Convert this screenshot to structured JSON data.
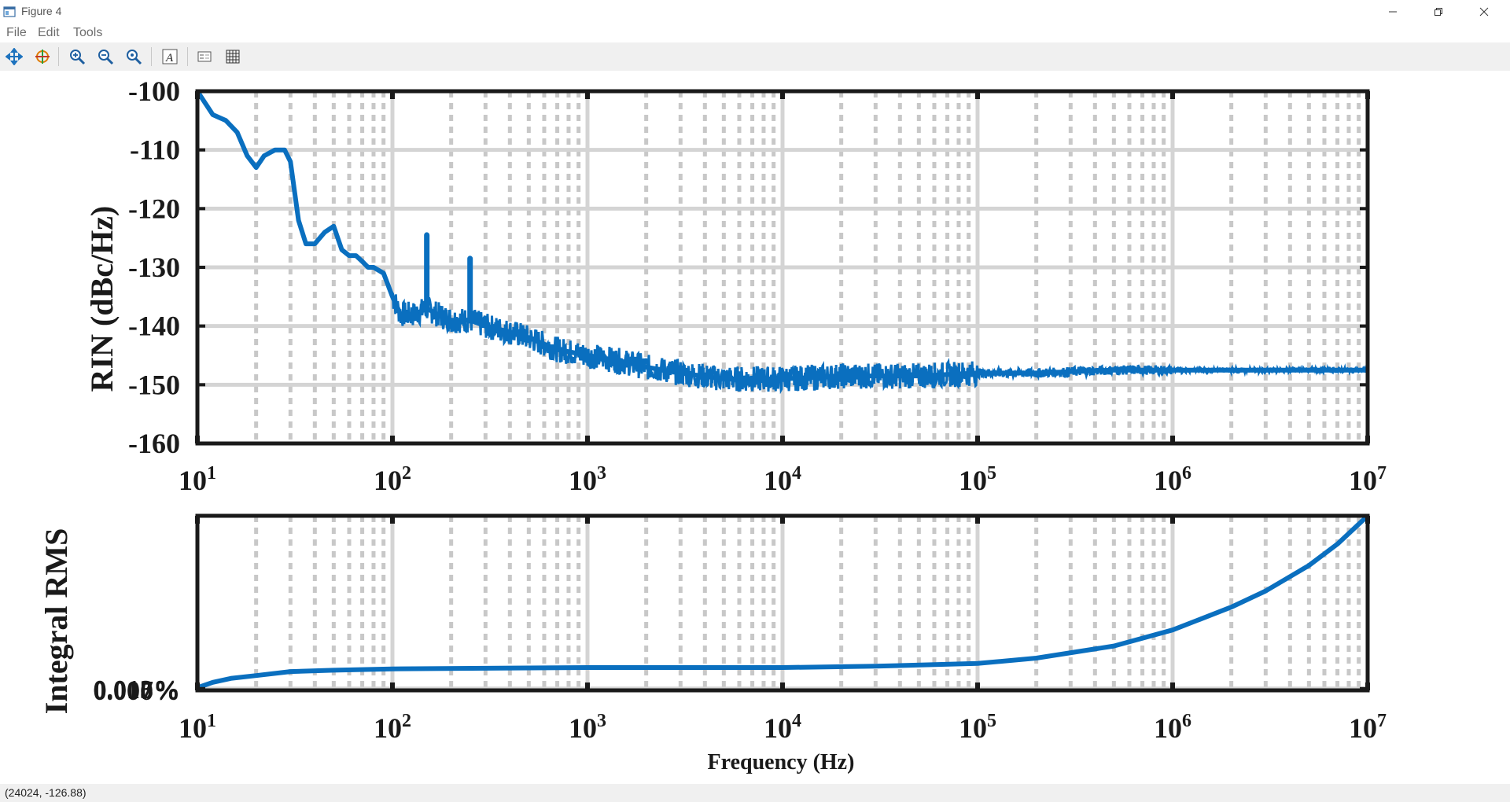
{
  "window": {
    "title": "Figure 4",
    "controls": [
      "minimize",
      "restore",
      "close"
    ]
  },
  "menu": {
    "items": [
      "File",
      "Edit",
      "Tools"
    ]
  },
  "toolbar": {
    "buttons": [
      {
        "icon": "pan-icon"
      },
      {
        "icon": "rotate-3d-icon"
      },
      {
        "icon": "zoom-in-icon"
      },
      {
        "icon": "zoom-out-icon"
      },
      {
        "icon": "zoom-reset-icon"
      },
      {
        "icon": "insert-text-icon"
      },
      {
        "icon": "insert-legend-icon"
      },
      {
        "icon": "grid-toggle-icon"
      }
    ]
  },
  "status": {
    "coords": "(24024, -126.88)"
  },
  "colors": {
    "line": "#0a6fbf",
    "axis": "#1a1a1a",
    "grid": "#cccccc"
  },
  "chart_data": [
    {
      "type": "line",
      "title": "",
      "xlabel": "",
      "ylabel": "RIN (dBc/Hz)",
      "xscale": "log",
      "xlim": [
        10,
        10000000
      ],
      "ylim": [
        -160,
        -100
      ],
      "yticks": [
        "-100",
        "-110",
        "-120",
        "-130",
        "-140",
        "-150",
        "-160"
      ],
      "xticks": [
        {
          "base": "10",
          "exp": "1"
        },
        {
          "base": "10",
          "exp": "2"
        },
        {
          "base": "10",
          "exp": "3"
        },
        {
          "base": "10",
          "exp": "4"
        },
        {
          "base": "10",
          "exp": "5"
        },
        {
          "base": "10",
          "exp": "6"
        },
        {
          "base": "10",
          "exp": "7"
        }
      ],
      "grid": true,
      "series": [
        {
          "x": [
            10,
            12,
            14,
            16,
            18,
            20,
            22,
            25,
            28,
            30,
            33,
            36,
            40,
            45,
            50,
            55,
            60,
            65,
            70,
            75,
            80,
            90,
            100,
            110,
            130,
            150,
            170,
            200,
            250,
            300,
            400,
            500,
            700,
            1000,
            1500,
            2000,
            3000,
            5000,
            7000,
            10000,
            20000,
            50000,
            100000,
            200000,
            500000,
            1000000,
            2000000,
            5000000,
            10000000
          ],
          "y": [
            -100,
            -104,
            -105,
            -107,
            -111,
            -113,
            -111,
            -110,
            -110,
            -112,
            -122,
            -126,
            -126,
            -124,
            -123,
            -127,
            -128,
            -128,
            -129,
            -130,
            -130,
            -131,
            -135,
            -138,
            -138,
            -137,
            -138,
            -139,
            -139,
            -140,
            -141,
            -142,
            -144,
            -145,
            -146,
            -147,
            -148,
            -149,
            -149,
            -149,
            -148.5,
            -148.5,
            -148,
            -148,
            -147.5,
            -147.5,
            -147.5,
            -147.5,
            -147.5
          ]
        }
      ],
      "spikes": [
        {
          "x": 150,
          "y": -124.5
        },
        {
          "x": 250,
          "y": -128.5
        }
      ]
    },
    {
      "type": "line",
      "title": "",
      "xlabel": "Frequency (Hz)",
      "ylabel": "Integral RMS",
      "xscale": "log",
      "xlim": [
        10,
        10000000
      ],
      "ylim": [
        0,
        0.013
      ],
      "yticks": [
        "0.000%",
        "0.007%",
        "0.013%"
      ],
      "xticks": [
        {
          "base": "10",
          "exp": "1"
        },
        {
          "base": "10",
          "exp": "2"
        },
        {
          "base": "10",
          "exp": "3"
        },
        {
          "base": "10",
          "exp": "4"
        },
        {
          "base": "10",
          "exp": "5"
        },
        {
          "base": "10",
          "exp": "6"
        },
        {
          "base": "10",
          "exp": "7"
        }
      ],
      "grid": true,
      "series": [
        {
          "x": [
            10,
            12,
            15,
            20,
            30,
            50,
            100,
            1000,
            10000,
            30000,
            100000,
            200000,
            500000,
            1000000,
            2000000,
            3000000,
            5000000,
            7000000,
            10000000
          ],
          "y": [
            0.0002,
            0.0006,
            0.0009,
            0.0011,
            0.0014,
            0.0015,
            0.0016,
            0.0017,
            0.0017,
            0.0018,
            0.002,
            0.0024,
            0.0033,
            0.0045,
            0.0062,
            0.0074,
            0.0093,
            0.0109,
            0.013
          ]
        }
      ]
    }
  ]
}
